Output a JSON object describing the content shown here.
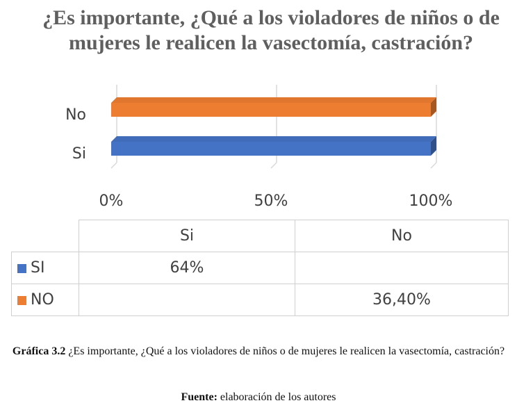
{
  "chart_data": {
    "type": "bar",
    "orientation": "horizontal",
    "style": "3d",
    "title": "¿Es importante, ¿Qué a los violadores de niños o de mujeres le realicen la vasectomía, castración?",
    "categories": [
      "Si",
      "No"
    ],
    "series": [
      {
        "name": "SI",
        "color": "#4472C4",
        "values": [
          64,
          null
        ],
        "label": "64%"
      },
      {
        "name": "NO",
        "color": "#ED7D31",
        "values": [
          null,
          36.4
        ],
        "label": "36,40%"
      }
    ],
    "stacking": "percent",
    "xlim": [
      0,
      100
    ],
    "tick_labels": [
      "0%",
      "50%",
      "100%"
    ],
    "gridlines": true,
    "data_table": {
      "headers": [
        "Si",
        "No"
      ],
      "rows": [
        {
          "legend": "SI",
          "color": "#4472C4",
          "cells": [
            "64%",
            ""
          ]
        },
        {
          "legend": "NO",
          "color": "#ED7D31",
          "cells": [
            "",
            "36,40%"
          ]
        }
      ]
    }
  },
  "caption": {
    "label": "Gráfica 3.2",
    "text": " ¿Es importante, ¿Qué a los violadores de niños o de mujeres le realicen la vasectomía, castración?"
  },
  "source": {
    "label": "Fuente:",
    "text": " elaboración de los autores"
  }
}
